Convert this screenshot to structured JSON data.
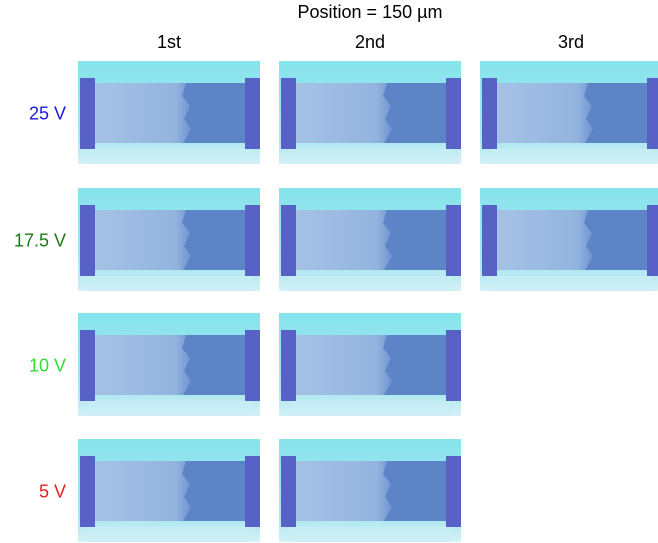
{
  "title": "Position = 150 µm",
  "columns": [
    "1st",
    "2nd",
    "3rd"
  ],
  "rows": [
    {
      "label": "25 V",
      "color": "#1a1adb",
      "panel_count": 3
    },
    {
      "label": "17.5 V",
      "color": "#1a7a1a",
      "panel_count": 3
    },
    {
      "label": "10 V",
      "color": "#33e033",
      "panel_count": 2
    },
    {
      "label": "5 V",
      "color": "#e81c1c",
      "panel_count": 2
    }
  ]
}
